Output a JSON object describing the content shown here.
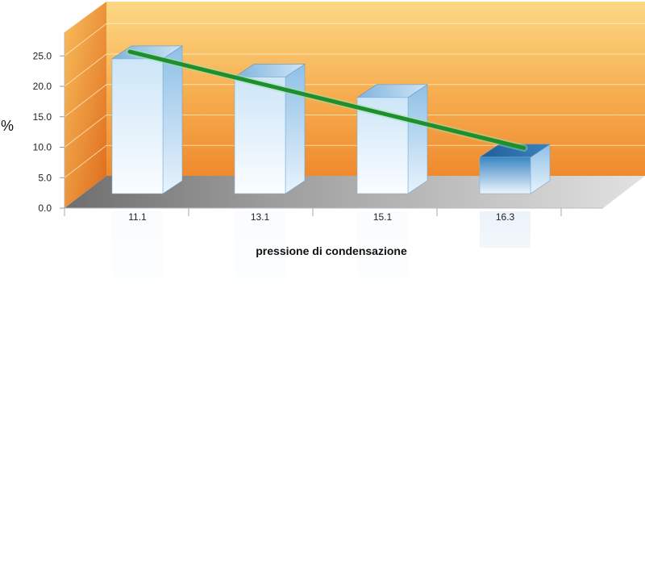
{
  "chart_data": {
    "type": "bar",
    "categories": [
      "11.1",
      "13.1",
      "15.1",
      "16.3"
    ],
    "values": [
      23.7,
      20.5,
      16.9,
      6.4
    ],
    "trend_line": {
      "start": 25.8,
      "end": 7.6,
      "color": "#1e8f2e"
    },
    "xlabel": "pressione di condensazione",
    "ylabel": "%",
    "ylim": [
      0,
      25
    ],
    "yticks": [
      "0.0",
      "5.0",
      "10.0",
      "15.0",
      "20.0",
      "25.0"
    ],
    "grid": true,
    "legend": "none"
  },
  "colors": {
    "wall_top": "#fbd478",
    "wall_bottom": "#ec7d24",
    "floor": "#9a9a9a",
    "bar_light": "#f4fafe",
    "bar_mid": "#a7d0ee",
    "bar_dark": "#2b6fa8",
    "trend": "#1e8f2e"
  }
}
